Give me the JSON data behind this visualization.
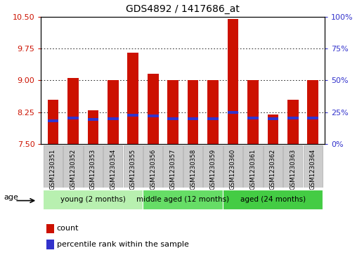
{
  "title": "GDS4892 / 1417686_at",
  "samples": [
    "GSM1230351",
    "GSM1230352",
    "GSM1230353",
    "GSM1230354",
    "GSM1230355",
    "GSM1230356",
    "GSM1230357",
    "GSM1230358",
    "GSM1230359",
    "GSM1230360",
    "GSM1230361",
    "GSM1230362",
    "GSM1230363",
    "GSM1230364"
  ],
  "count_values": [
    8.55,
    9.05,
    8.3,
    9.0,
    9.65,
    9.15,
    9.0,
    9.0,
    9.0,
    10.45,
    9.0,
    8.2,
    8.55,
    9.0
  ],
  "percentile_values": [
    8.05,
    8.12,
    8.08,
    8.09,
    8.18,
    8.16,
    8.09,
    8.09,
    8.1,
    8.25,
    8.11,
    8.09,
    8.12,
    8.12
  ],
  "ymin": 7.5,
  "ymax": 10.5,
  "yticks": [
    7.5,
    8.25,
    9.0,
    9.75,
    10.5
  ],
  "right_yticks": [
    0,
    25,
    50,
    75,
    100
  ],
  "right_ytick_labels": [
    "0%",
    "25%",
    "50%",
    "75%",
    "100%"
  ],
  "bar_color": "#cc1100",
  "percentile_color": "#3333cc",
  "tick_label_color_left": "#cc1100",
  "tick_label_color_right": "#3333cc",
  "groups": [
    {
      "label": "young (2 months)",
      "start": 0,
      "end": 5,
      "color": "#b8f0b0"
    },
    {
      "label": "middle aged (12 months)",
      "start": 5,
      "end": 9,
      "color": "#66dd66"
    },
    {
      "label": "aged (24 months)",
      "start": 9,
      "end": 14,
      "color": "#44cc44"
    }
  ],
  "age_label": "age",
  "legend_count": "count",
  "legend_percentile": "percentile rank within the sample",
  "bar_width": 0.55,
  "baseline": 7.5,
  "gray_box_color": "#cccccc",
  "gray_box_edge": "#aaaaaa"
}
